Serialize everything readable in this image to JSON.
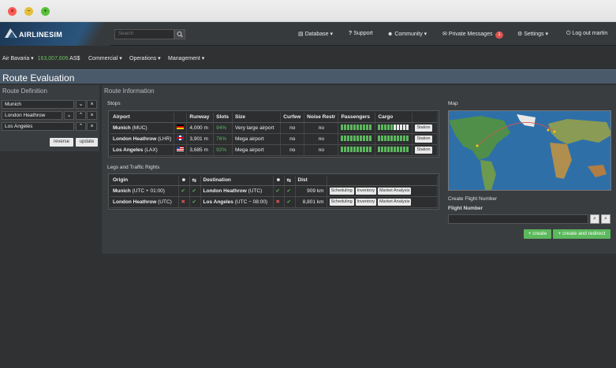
{
  "window_controls": {
    "close": "×",
    "minimize": "−",
    "maximize": "+"
  },
  "header": {
    "logo_text": "AIRLINESIM",
    "search_placeholder": "Search",
    "nav": {
      "database": "Database ▾",
      "support": "Support",
      "community": "Community ▾",
      "messages": "Private Messages",
      "messages_count": "1",
      "settings": "Settings ▾",
      "logout": "Log out martin"
    }
  },
  "subnav": {
    "airline": "Air Bavaria ▾",
    "balance": "163,007,606",
    "currency": "AS$",
    "commercial": "Commercial ▾",
    "operations": "Operations ▾",
    "management": "Management ▾"
  },
  "page": {
    "title": "Route Evaluation"
  },
  "route_definition": {
    "title": "Route Definition",
    "airports": [
      "Munich",
      "London Heathrow",
      "Los Angeles"
    ],
    "reverse_label": "reverse",
    "update_label": "update"
  },
  "route_information": {
    "title": "Route Information",
    "stops_title": "Stops",
    "stops_headers": [
      "Airport",
      "",
      "Runway",
      "Slots",
      "Size",
      "Curfew",
      "Noise Restr",
      "Passengers",
      "Cargo",
      ""
    ],
    "stops": [
      {
        "name": "Munich",
        "code": "(MUC)",
        "flag": "de",
        "runway": "4,000 m",
        "slots": "94%",
        "size": "Very large airport",
        "curfew": "no",
        "noise": "no",
        "passengers": 10,
        "cargo": 5,
        "action": "Station"
      },
      {
        "name": "London Heathrow",
        "code": "(LHR)",
        "flag": "gb",
        "runway": "3,901 m",
        "slots": "76%",
        "size": "Mega airport",
        "curfew": "no",
        "noise": "no",
        "passengers": 10,
        "cargo": 10,
        "action": "Station"
      },
      {
        "name": "Los Angeles",
        "code": "(LAX)",
        "flag": "us",
        "runway": "3,685 m",
        "slots": "92%",
        "size": "Mega airport",
        "curfew": "no",
        "noise": "no",
        "passengers": 10,
        "cargo": 10,
        "action": "Station"
      }
    ],
    "legs_title": "Legs and Traffic Rights",
    "legs_headers": [
      "Origin",
      "",
      "",
      "Destination",
      "",
      "",
      "Dist",
      ""
    ],
    "legs": [
      {
        "origin": "Munich",
        "origin_tz": "(UTC + 01:00)",
        "o1": "✔",
        "o2": "✔",
        "destination": "London Heathrow",
        "dest_tz": "(UTC)",
        "d1": "✔",
        "d2": "✔",
        "dist": "909 km",
        "actions": [
          "Scheduling",
          "Inventory",
          "Market Analysis"
        ]
      },
      {
        "origin": "London Heathrow",
        "origin_tz": "(UTC)",
        "o1": "✖",
        "o2": "✔",
        "destination": "Los Angeles",
        "dest_tz": "(UTC − 08:00)",
        "d1": "✖",
        "d2": "✔",
        "dist": "8,801 km",
        "actions": [
          "Scheduling",
          "Inventory",
          "Market Analysis"
        ]
      }
    ]
  },
  "map": {
    "title": "Map"
  },
  "create_flight": {
    "title": "Create Flight Number",
    "label": "Flight Number",
    "create_label": "+ create",
    "create_redirect_label": "+ create and redirect"
  }
}
